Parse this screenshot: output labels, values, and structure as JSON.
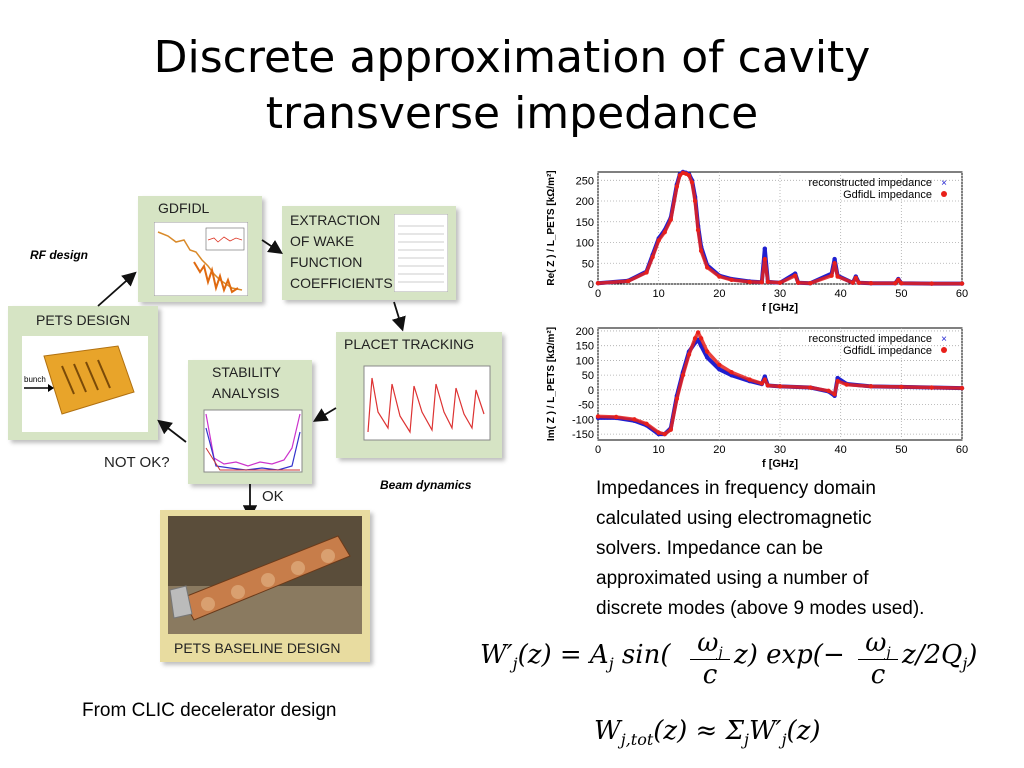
{
  "slide": {
    "title_line1": "Discrete approximation of cavity",
    "title_line2": "transverse impedance",
    "caption_lines": [
      "Impedances in frequency domain",
      "calculated using electromagnetic",
      "solvers.  Impedance can be",
      "approximated using a number of",
      "discrete modes (above 9 modes used)."
    ],
    "source_note": "From CLIC decelerator design",
    "equation1": "W′j(z) = Aj sin(ωj/c z) exp(−ωj/c z/2Qj)",
    "equation2": "Wj,tot(z) ≈ Σj W′j(z)"
  },
  "flow": {
    "rf_design": "RF design",
    "beam_dynamics": "Beam dynamics",
    "gdfidl": "GDFIDL",
    "extraction": [
      "EXTRACTION",
      "OF WAKE",
      "FUNCTION",
      "COEFFICIENTS"
    ],
    "placet": "PLACET TRACKING",
    "pets_design": "PETS DESIGN",
    "bunch": "bunch",
    "stability": [
      "STABILITY",
      "ANALYSIS"
    ],
    "not_ok": "NOT OK?",
    "ok": "OK",
    "baseline": "PETS BASELINE DESIGN"
  },
  "chart_data": [
    {
      "type": "line",
      "xlabel": "f [GHz]",
      "ylabel": "Re( Z ) / L_PETS  [kΩ/m²]",
      "xlim": [
        0,
        60
      ],
      "ylim": [
        0,
        270
      ],
      "xticks": [
        0,
        10,
        20,
        30,
        40,
        50,
        60
      ],
      "yticks": [
        0,
        50,
        100,
        150,
        200,
        250
      ],
      "grid": true,
      "legend_position": "top-right",
      "series": [
        {
          "name": "reconstructed impedance",
          "color": "#1f1fd0",
          "x": [
            0,
            5,
            8,
            9,
            10,
            11,
            12,
            13,
            13.5,
            14,
            14.5,
            15,
            15.5,
            16,
            16.5,
            17,
            18,
            20,
            22,
            25,
            27,
            27.5,
            28,
            30,
            32.5,
            33,
            35,
            38.5,
            39,
            39.5,
            42,
            42.5,
            43,
            45,
            49,
            49.5,
            50,
            55,
            60
          ],
          "y": [
            2,
            8,
            30,
            70,
            110,
            130,
            160,
            240,
            265,
            270,
            268,
            265,
            250,
            210,
            140,
            90,
            45,
            20,
            12,
            6,
            4,
            85,
            5,
            3,
            25,
            3,
            2,
            25,
            60,
            20,
            3,
            18,
            3,
            2,
            2,
            12,
            2,
            1,
            1
          ]
        },
        {
          "name": "GdfidL impedance",
          "color": "#e8201a",
          "x": [
            0,
            5,
            8,
            9,
            10,
            11,
            12,
            13,
            13.5,
            14,
            14.5,
            15,
            15.5,
            16,
            16.5,
            17,
            18,
            20,
            22,
            25,
            27,
            27.5,
            28,
            30,
            32.5,
            33,
            35,
            38.5,
            39,
            39.5,
            42,
            42.5,
            43,
            45,
            49,
            49.5,
            50,
            55,
            60
          ],
          "y": [
            2,
            7,
            28,
            65,
            105,
            125,
            155,
            235,
            262,
            268,
            266,
            262,
            245,
            200,
            130,
            80,
            40,
            18,
            10,
            5,
            4,
            60,
            5,
            3,
            20,
            3,
            2,
            20,
            50,
            18,
            3,
            15,
            3,
            2,
            2,
            10,
            2,
            1,
            1
          ]
        }
      ]
    },
    {
      "type": "line",
      "xlabel": "f [GHz]",
      "ylabel": "Im( Z ) / L_PETS  [kΩ/m²]",
      "xlim": [
        0,
        60
      ],
      "ylim": [
        -170,
        210
      ],
      "xticks": [
        0,
        10,
        20,
        30,
        40,
        50,
        60
      ],
      "yticks": [
        -150,
        -100,
        -50,
        0,
        50,
        100,
        150,
        200
      ],
      "grid": true,
      "legend_position": "top-right",
      "series": [
        {
          "name": "reconstructed impedance",
          "color": "#1f1fd0",
          "x": [
            0,
            3,
            6,
            8,
            10,
            11,
            12,
            13,
            14,
            15,
            16,
            16.5,
            17,
            18,
            20,
            22,
            25,
            27,
            27.5,
            28,
            30,
            35,
            38,
            39,
            39.5,
            41,
            45,
            50,
            55,
            60
          ],
          "y": [
            -95,
            -95,
            -105,
            -120,
            -150,
            -150,
            -130,
            -20,
            60,
            130,
            160,
            170,
            150,
            110,
            70,
            50,
            30,
            20,
            45,
            15,
            12,
            8,
            -5,
            -20,
            40,
            20,
            12,
            10,
            8,
            6
          ]
        },
        {
          "name": "GdfidL impedance",
          "color": "#e8201a",
          "x": [
            0,
            3,
            6,
            8,
            10,
            11,
            12,
            13,
            14,
            15,
            16,
            16.5,
            17,
            18,
            20,
            22,
            25,
            27,
            27.5,
            28,
            30,
            35,
            38,
            39,
            39.5,
            41,
            45,
            50,
            55,
            60
          ],
          "y": [
            -90,
            -92,
            -100,
            -115,
            -145,
            -150,
            -135,
            -30,
            50,
            120,
            175,
            195,
            175,
            130,
            85,
            60,
            35,
            22,
            35,
            15,
            12,
            8,
            -3,
            -15,
            30,
            18,
            12,
            10,
            8,
            6
          ]
        }
      ]
    }
  ]
}
